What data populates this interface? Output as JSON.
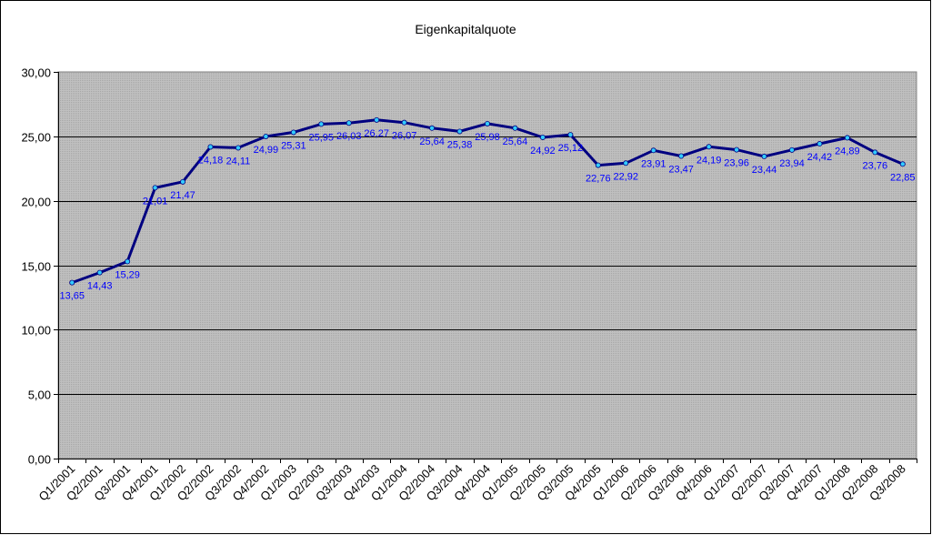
{
  "chart_data": {
    "type": "line",
    "title": "Eigenkapitalquote",
    "xlabel": "",
    "ylabel": "",
    "ylim": [
      0,
      30
    ],
    "yticks": [
      "0,00",
      "5,00",
      "10,00",
      "15,00",
      "20,00",
      "25,00",
      "30,00"
    ],
    "grid": true,
    "legend": "none",
    "colors": {
      "line": "#000080",
      "marker": "#33ccff",
      "label": "#0000ff",
      "plot_background": "#c0c0c0",
      "gridline": "#000000",
      "page_border": "#000000"
    },
    "categories": [
      "Q1/2001",
      "Q2/2001",
      "Q3/2001",
      "Q4/2001",
      "Q1/2002",
      "Q2/2002",
      "Q3/2002",
      "Q4/2002",
      "Q1/2003",
      "Q2/2003",
      "Q3/2003",
      "Q4/2003",
      "Q1/2004",
      "Q2/2004",
      "Q3/2004",
      "Q4/2004",
      "Q1/2005",
      "Q2/2005",
      "Q3/2005",
      "Q4/2005",
      "Q1/2006",
      "Q2/2006",
      "Q3/2006",
      "Q4/2006",
      "Q1/2007",
      "Q2/2007",
      "Q3/2007",
      "Q4/2007",
      "Q1/2008",
      "Q2/2008",
      "Q3/2008"
    ],
    "values": [
      13.65,
      14.43,
      15.29,
      21.01,
      21.47,
      24.18,
      24.11,
      24.99,
      25.31,
      25.95,
      26.03,
      26.27,
      26.07,
      25.64,
      25.38,
      25.98,
      25.64,
      24.92,
      25.12,
      22.76,
      22.92,
      23.91,
      23.47,
      24.19,
      23.96,
      23.44,
      23.94,
      24.42,
      24.89,
      23.76,
      22.85
    ],
    "value_labels": [
      "13,65",
      "14,43",
      "15,29",
      "21,01",
      "21,47",
      "24,18",
      "24,11",
      "24,99",
      "25,31",
      "25,95",
      "26,03",
      "26,27",
      "26,07",
      "25,64",
      "25,38",
      "25,98",
      "25,64",
      "24,92",
      "25,12",
      "22,76",
      "22,92",
      "23,91",
      "23,47",
      "24,19",
      "23,96",
      "23,44",
      "23,94",
      "24,42",
      "24,89",
      "23,76",
      "22,85"
    ]
  }
}
